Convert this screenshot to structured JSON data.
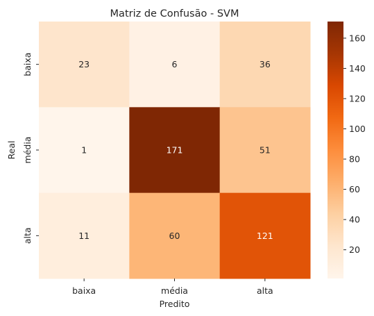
{
  "chart_data": {
    "type": "heatmap",
    "title": "Matriz de Confusão - SVM",
    "xlabel": "Predito",
    "ylabel": "Real",
    "x_categories": [
      "baixa",
      "média",
      "alta"
    ],
    "y_categories": [
      "baixa",
      "média",
      "alta"
    ],
    "values": [
      [
        23,
        6,
        36
      ],
      [
        1,
        171,
        51
      ],
      [
        11,
        60,
        121
      ]
    ],
    "colorscale": "Oranges",
    "colorbar": {
      "vmin": 1,
      "vmax": 171,
      "ticks": [
        "20",
        "40",
        "60",
        "80",
        "100",
        "120",
        "140",
        "160"
      ]
    }
  }
}
